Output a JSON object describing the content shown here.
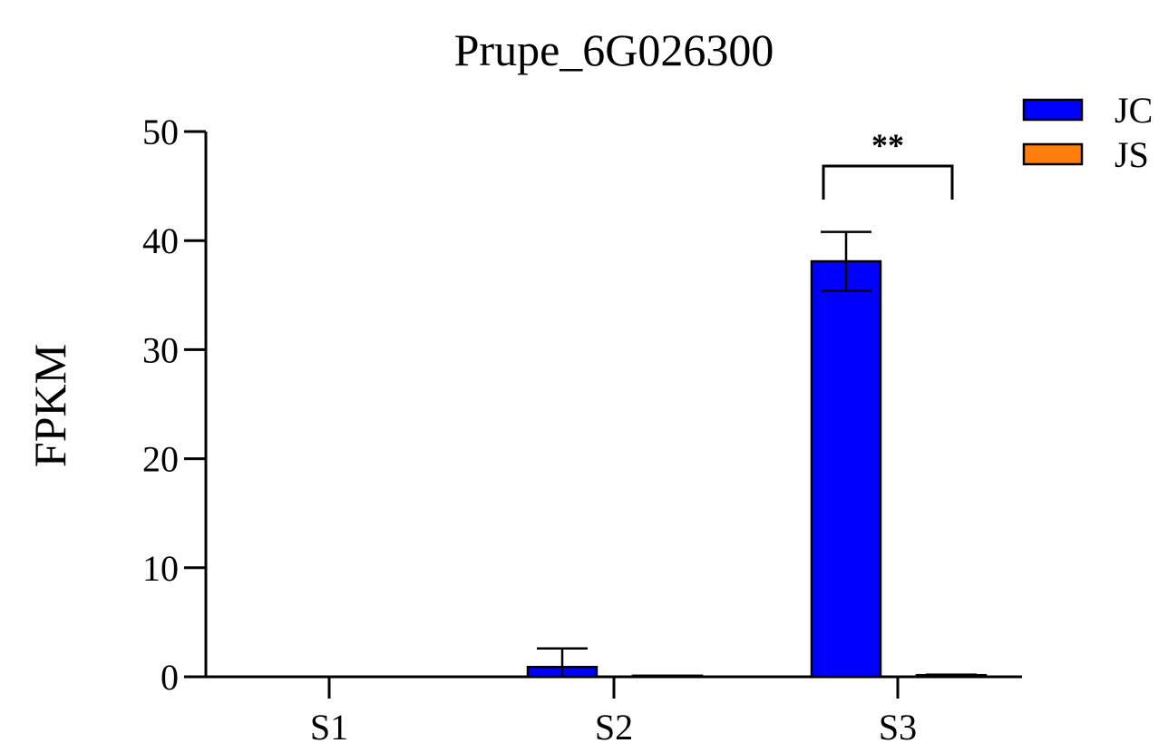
{
  "chart_data": {
    "type": "bar",
    "title": "Prupe_6G026300",
    "ylabel": "FPKM",
    "xlabel": "",
    "categories": [
      "S1",
      "S2",
      "S3"
    ],
    "ylim": [
      0,
      50
    ],
    "yticks": [
      0,
      10,
      20,
      30,
      40,
      50
    ],
    "grid": false,
    "legend_position": "top-right",
    "series": [
      {
        "name": "JC",
        "color": "#0000ff",
        "values": [
          0.02,
          0.9,
          38.1
        ],
        "errors": [
          0.0,
          1.7,
          2.7
        ]
      },
      {
        "name": "JS",
        "color": "#ff7f0e",
        "values": [
          0.05,
          0.1,
          0.15
        ],
        "errors": [
          0.0,
          0.0,
          0.05
        ]
      }
    ],
    "annotations": [
      {
        "text": "**",
        "category": "S3",
        "type": "significance-bracket"
      }
    ]
  }
}
